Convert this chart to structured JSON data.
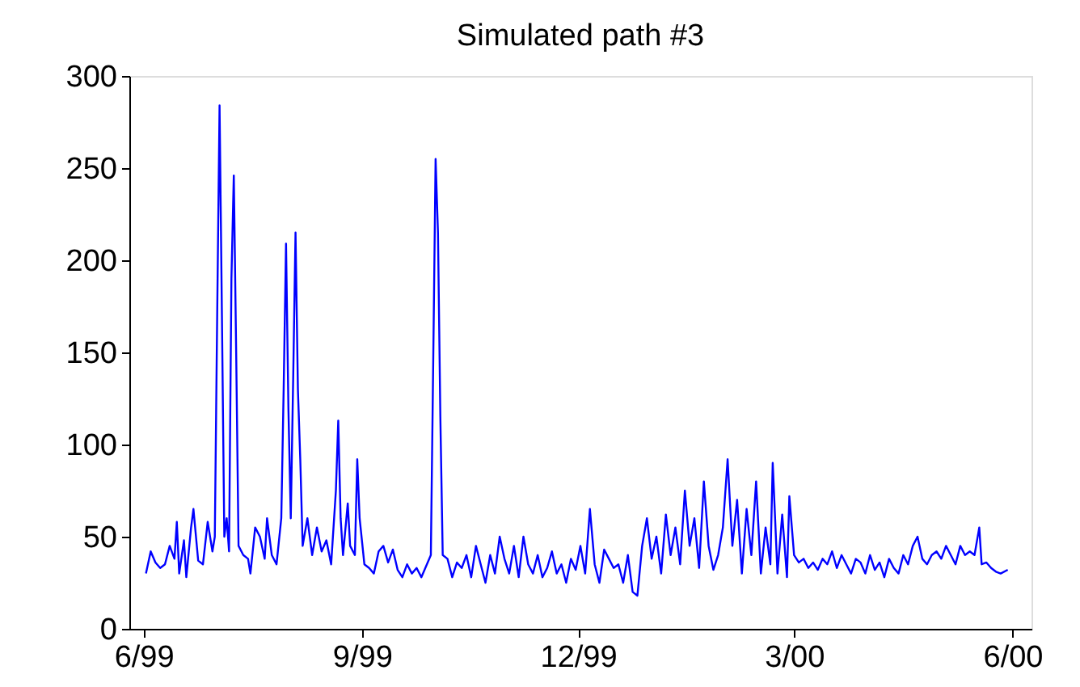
{
  "chart_data": {
    "type": "line",
    "title": "Simulated path #3",
    "x": [
      "1999-06-02",
      "1999-06-04",
      "1999-06-06",
      "1999-06-08",
      "1999-06-10",
      "1999-06-12",
      "1999-06-14",
      "1999-06-15",
      "1999-06-16",
      "1999-06-18",
      "1999-06-19",
      "1999-06-21",
      "1999-06-22",
      "1999-06-24",
      "1999-06-26",
      "1999-06-28",
      "1999-06-30",
      "1999-07-01",
      "1999-07-02",
      "1999-07-03",
      "1999-07-04",
      "1999-07-05",
      "1999-07-06",
      "1999-07-07",
      "1999-07-08",
      "1999-07-09",
      "1999-07-10",
      "1999-07-11",
      "1999-07-13",
      "1999-07-15",
      "1999-07-16",
      "1999-07-18",
      "1999-07-20",
      "1999-07-22",
      "1999-07-23",
      "1999-07-25",
      "1999-07-27",
      "1999-07-29",
      "1999-07-30",
      "1999-07-31",
      "1999-08-01",
      "1999-08-02",
      "1999-08-03",
      "1999-08-04",
      "1999-08-05",
      "1999-08-06",
      "1999-08-07",
      "1999-08-09",
      "1999-08-11",
      "1999-08-13",
      "1999-08-15",
      "1999-08-17",
      "1999-08-19",
      "1999-08-21",
      "1999-08-22",
      "1999-08-23",
      "1999-08-24",
      "1999-08-26",
      "1999-08-27",
      "1999-08-29",
      "1999-08-30",
      "1999-08-31",
      "1999-09-02",
      "1999-09-04",
      "1999-09-06",
      "1999-09-08",
      "1999-09-10",
      "1999-09-12",
      "1999-09-14",
      "1999-09-16",
      "1999-09-18",
      "1999-09-20",
      "1999-09-22",
      "1999-09-24",
      "1999-09-26",
      "1999-09-30",
      "1999-10-01",
      "1999-10-02",
      "1999-10-03",
      "1999-10-04",
      "1999-10-05",
      "1999-10-07",
      "1999-10-09",
      "1999-10-11",
      "1999-10-13",
      "1999-10-15",
      "1999-10-17",
      "1999-10-19",
      "1999-10-21",
      "1999-10-23",
      "1999-10-25",
      "1999-10-27",
      "1999-10-29",
      "1999-10-31",
      "1999-11-02",
      "1999-11-04",
      "1999-11-06",
      "1999-11-08",
      "1999-11-10",
      "1999-11-12",
      "1999-11-14",
      "1999-11-16",
      "1999-11-18",
      "1999-11-20",
      "1999-11-22",
      "1999-11-24",
      "1999-11-26",
      "1999-11-28",
      "1999-11-30",
      "1999-12-02",
      "1999-12-04",
      "1999-12-06",
      "1999-12-08",
      "1999-12-10",
      "1999-12-12",
      "1999-12-14",
      "1999-12-16",
      "1999-12-18",
      "1999-12-20",
      "1999-12-22",
      "1999-12-24",
      "1999-12-26",
      "1999-12-28",
      "1999-12-30",
      "2000-01-01",
      "2000-01-03",
      "2000-01-05",
      "2000-01-07",
      "2000-01-09",
      "2000-01-11",
      "2000-01-13",
      "2000-01-15",
      "2000-01-17",
      "2000-01-19",
      "2000-01-21",
      "2000-01-23",
      "2000-01-25",
      "2000-01-27",
      "2000-01-29",
      "2000-01-31",
      "2000-02-02",
      "2000-02-04",
      "2000-02-06",
      "2000-02-08",
      "2000-02-10",
      "2000-02-12",
      "2000-02-14",
      "2000-02-16",
      "2000-02-18",
      "2000-02-20",
      "2000-02-21",
      "2000-02-23",
      "2000-02-25",
      "2000-02-27",
      "2000-02-28",
      "2000-03-01",
      "2000-03-03",
      "2000-03-05",
      "2000-03-07",
      "2000-03-09",
      "2000-03-11",
      "2000-03-13",
      "2000-03-15",
      "2000-03-17",
      "2000-03-19",
      "2000-03-21",
      "2000-03-23",
      "2000-03-25",
      "2000-03-27",
      "2000-03-29",
      "2000-03-31",
      "2000-04-02",
      "2000-04-04",
      "2000-04-06",
      "2000-04-08",
      "2000-04-10",
      "2000-04-12",
      "2000-04-14",
      "2000-04-16",
      "2000-04-18",
      "2000-04-20",
      "2000-04-22",
      "2000-04-24",
      "2000-04-26",
      "2000-04-28",
      "2000-04-30",
      "2000-05-02",
      "2000-05-04",
      "2000-05-06",
      "2000-05-08",
      "2000-05-10",
      "2000-05-12",
      "2000-05-14",
      "2000-05-16",
      "2000-05-18",
      "2000-05-19",
      "2000-05-21",
      "2000-05-23",
      "2000-05-25",
      "2000-05-27",
      "2000-05-30"
    ],
    "series": [
      {
        "color": "#0000ff",
        "values": [
          30,
          42,
          36,
          33,
          35,
          45,
          38,
          58,
          30,
          48,
          28,
          55,
          65,
          37,
          35,
          58,
          42,
          50,
          170,
          284,
          170,
          50,
          60,
          42,
          190,
          246,
          150,
          45,
          40,
          38,
          30,
          55,
          50,
          38,
          60,
          40,
          35,
          60,
          130,
          209,
          120,
          60,
          135,
          215,
          130,
          92,
          45,
          60,
          40,
          55,
          42,
          48,
          35,
          75,
          113,
          60,
          40,
          68,
          45,
          40,
          92,
          60,
          35,
          33,
          30,
          42,
          45,
          36,
          43,
          32,
          28,
          35,
          30,
          33,
          28,
          40,
          145,
          255,
          215,
          115,
          40,
          38,
          28,
          36,
          33,
          40,
          28,
          45,
          35,
          25,
          40,
          30,
          50,
          38,
          30,
          45,
          28,
          50,
          35,
          30,
          40,
          28,
          33,
          42,
          30,
          35,
          25,
          38,
          32,
          45,
          30,
          65,
          35,
          25,
          43,
          38,
          33,
          35,
          25,
          40,
          20,
          18,
          45,
          60,
          38,
          50,
          30,
          62,
          40,
          55,
          35,
          75,
          45,
          60,
          33,
          80,
          45,
          32,
          40,
          55,
          92,
          45,
          70,
          30,
          65,
          40,
          80,
          30,
          55,
          35,
          90,
          30,
          62,
          28,
          72,
          40,
          36,
          38,
          33,
          36,
          32,
          38,
          35,
          42,
          33,
          40,
          35,
          30,
          38,
          36,
          30,
          40,
          32,
          36,
          28,
          38,
          33,
          30,
          40,
          35,
          45,
          50,
          38,
          35,
          40,
          42,
          38,
          45,
          40,
          35,
          45,
          40,
          42,
          40,
          55,
          35,
          36,
          33,
          31,
          30,
          32
        ]
      }
    ],
    "xlim": [
      "1999-05-26",
      "2000-06-09"
    ],
    "xticks": [
      {
        "value": "1999-06-01",
        "label": "6/99"
      },
      {
        "value": "1999-09-01",
        "label": "9/99"
      },
      {
        "value": "1999-12-01",
        "label": "12/99"
      },
      {
        "value": "2000-03-01",
        "label": "3/00"
      },
      {
        "value": "2000-06-01",
        "label": "6/00"
      }
    ],
    "ylim": [
      0,
      300
    ],
    "yticks": [
      0,
      50,
      100,
      150,
      200,
      250,
      300
    ],
    "grid": false,
    "marker": "none",
    "line_style": "solid"
  }
}
